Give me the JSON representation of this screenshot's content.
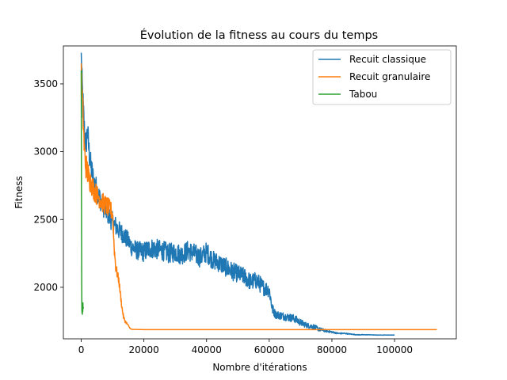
{
  "chart_data": {
    "type": "line",
    "title": "Évolution de la fitness au cours du temps",
    "xlabel": "Nombre d'itérations",
    "ylabel": "Fitness",
    "xlim": [
      -5700,
      119700
    ],
    "ylim": [
      1620,
      3780
    ],
    "xticks": [
      0,
      20000,
      40000,
      60000,
      80000,
      100000
    ],
    "yticks": [
      2000,
      2500,
      3000,
      3500
    ],
    "grid": false,
    "legend_position": "top-right",
    "series": [
      {
        "name": "Recuit classique",
        "color": "#1f77b4",
        "x": [
          0,
          500,
          1000,
          1500,
          2000,
          2500,
          3000,
          4000,
          5000,
          6000,
          7000,
          8000,
          9000,
          10000,
          11000,
          12000,
          13000,
          14000,
          15000,
          16000,
          18000,
          20000,
          22000,
          24000,
          26000,
          28000,
          30000,
          32000,
          34000,
          36000,
          38000,
          40000,
          42000,
          44000,
          46000,
          48000,
          50000,
          52000,
          54000,
          56000,
          58000,
          60000,
          61000,
          62000,
          64000,
          66000,
          68000,
          70000,
          72000,
          74000,
          76000,
          78000,
          80000,
          82000,
          84000,
          86000,
          88000,
          90000,
          92000,
          94000,
          96000,
          98000,
          100000
        ],
        "y": [
          3730,
          3350,
          3150,
          3050,
          3150,
          3000,
          2900,
          2780,
          2720,
          2650,
          2600,
          2560,
          2520,
          2480,
          2450,
          2420,
          2400,
          2370,
          2340,
          2300,
          2270,
          2260,
          2290,
          2280,
          2270,
          2250,
          2260,
          2240,
          2270,
          2250,
          2220,
          2260,
          2200,
          2180,
          2150,
          2120,
          2100,
          2080,
          2040,
          2050,
          2000,
          1980,
          1840,
          1800,
          1790,
          1780,
          1770,
          1740,
          1720,
          1710,
          1690,
          1680,
          1670,
          1660,
          1660,
          1655,
          1650,
          1650,
          1650,
          1648,
          1648,
          1648,
          1648
        ],
        "spread": [
          0,
          300,
          250,
          220,
          200,
          200,
          200,
          180,
          170,
          160,
          160,
          150,
          150,
          150,
          150,
          140,
          140,
          140,
          140,
          140,
          140,
          150,
          150,
          150,
          150,
          150,
          150,
          150,
          150,
          150,
          150,
          150,
          140,
          140,
          140,
          140,
          130,
          130,
          130,
          130,
          120,
          110,
          80,
          60,
          60,
          60,
          60,
          50,
          40,
          40,
          30,
          20,
          15,
          10,
          8,
          6,
          5,
          4,
          3,
          2,
          2,
          2,
          2
        ]
      },
      {
        "name": "Recuit granulaire",
        "color": "#ff7f0e",
        "x": [
          0,
          300,
          700,
          1000,
          1500,
          2000,
          2500,
          3000,
          4000,
          5000,
          6000,
          7000,
          8000,
          9000,
          10000,
          10500,
          11000,
          12000,
          13000,
          13500,
          14000,
          15000,
          15500,
          16000,
          20000,
          40000,
          60000,
          80000,
          100000,
          113500
        ],
        "y": [
          3650,
          3400,
          3200,
          3000,
          2900,
          2850,
          2800,
          2780,
          2720,
          2680,
          2650,
          2620,
          2600,
          2580,
          2550,
          2300,
          2150,
          2050,
          1850,
          1780,
          1750,
          1720,
          1700,
          1690,
          1688,
          1688,
          1688,
          1688,
          1688,
          1688
        ],
        "spread": [
          0,
          250,
          220,
          200,
          200,
          200,
          180,
          170,
          160,
          150,
          150,
          150,
          150,
          140,
          130,
          100,
          80,
          60,
          40,
          30,
          20,
          10,
          5,
          0,
          0,
          0,
          0,
          0,
          0,
          0
        ]
      },
      {
        "name": "Tabou",
        "color": "#2ca02c",
        "x": [
          0,
          40,
          80,
          120,
          160,
          200,
          240,
          280,
          320,
          360,
          400,
          440,
          480,
          520,
          560,
          600,
          640,
          680
        ],
        "y": [
          3600,
          3100,
          2700,
          2300,
          2000,
          1850,
          1820,
          1810,
          1830,
          1800,
          1870,
          1840,
          1820,
          1880,
          1850,
          1840,
          1860,
          1845
        ],
        "spread": [
          0,
          100,
          100,
          80,
          60,
          40,
          30,
          20,
          20,
          20,
          20,
          20,
          20,
          20,
          20,
          20,
          20,
          20
        ]
      }
    ]
  }
}
